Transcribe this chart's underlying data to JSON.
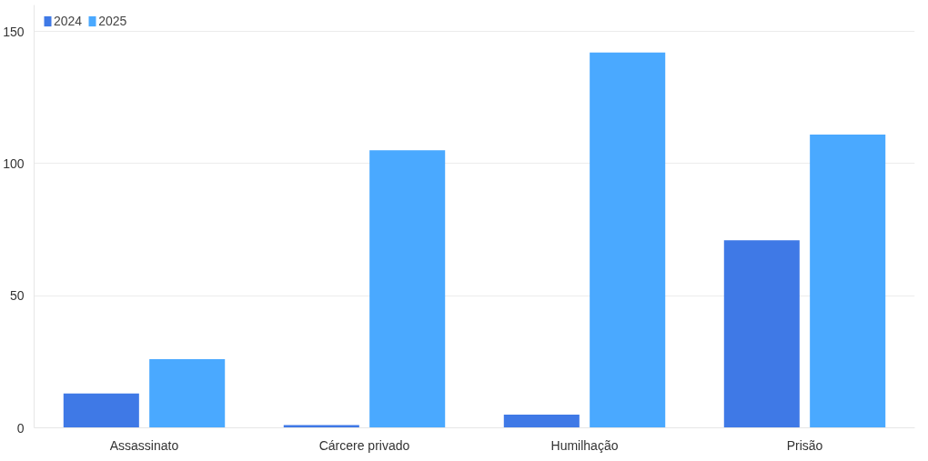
{
  "chart_data": {
    "type": "bar",
    "categories": [
      "Assassinato",
      "Cárcere privado",
      "Humilhação",
      "Prisão"
    ],
    "series": [
      {
        "name": "2024",
        "color": "#3f79e6",
        "values": [
          13,
          1,
          5,
          71
        ]
      },
      {
        "name": "2025",
        "color": "#4aa9ff",
        "values": [
          26,
          105,
          142,
          111
        ]
      }
    ],
    "ylim": [
      0,
      160
    ],
    "yticks": [
      0,
      50,
      100,
      150
    ],
    "grid": "y",
    "legend": "top left"
  }
}
